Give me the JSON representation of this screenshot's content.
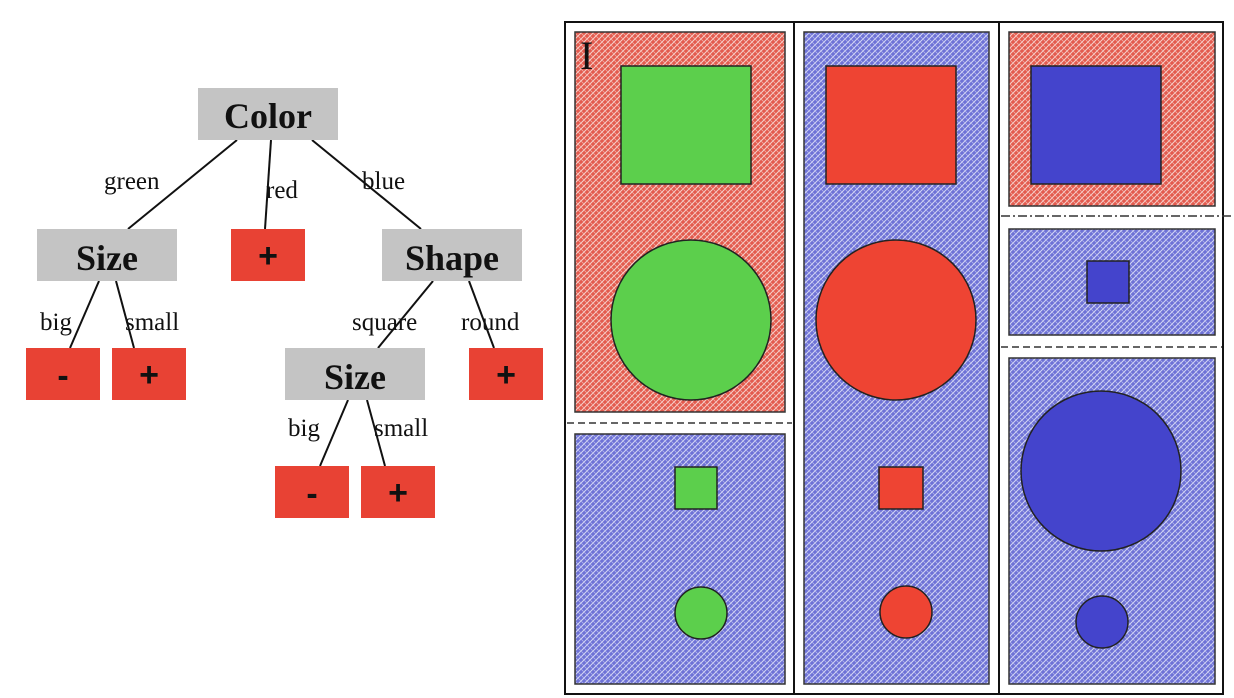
{
  "tree": {
    "root": {
      "label": "Color"
    },
    "edges": {
      "green": "green",
      "red": "red",
      "blue": "blue",
      "big_left": "big",
      "small_left": "small",
      "square": "square",
      "round": "round",
      "big_right": "big",
      "small_right": "small"
    },
    "nodes": {
      "size_left": "Size",
      "shape": "Shape",
      "size_right": "Size"
    },
    "leaves": {
      "red_leaf": "+",
      "green_big": "-",
      "green_small": "+",
      "round_leaf": "+",
      "blue_square_big": "-",
      "blue_square_small": "+"
    }
  },
  "instance_space": {
    "panel_label": "I",
    "colors": {
      "red": "#ee4433",
      "green": "#5ccf4c",
      "blue": "#4444cc",
      "red_region": "#e35b4e",
      "blue_region": "#6e72d6"
    }
  }
}
